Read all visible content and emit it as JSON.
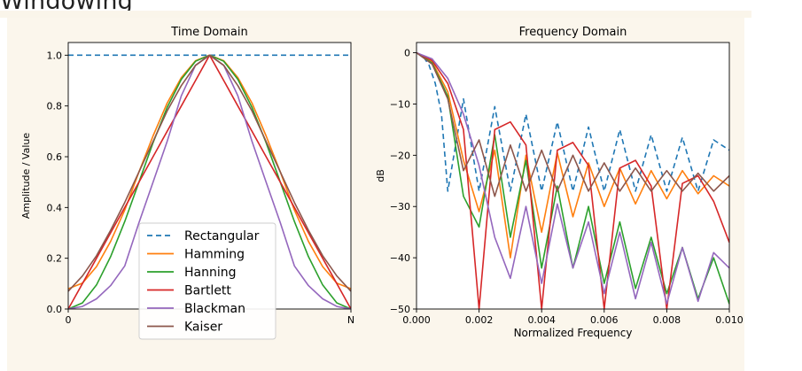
{
  "page": {
    "title": "Windowing"
  },
  "chart_data": [
    {
      "type": "line",
      "title": "Time Domain",
      "xlabel": "",
      "ylabel": "Amplitude / Value",
      "xticks": [
        "0",
        "N"
      ],
      "yticks": [
        "0.0",
        "0.2",
        "0.4",
        "0.6",
        "0.8",
        "1.0"
      ],
      "xlim": [
        0,
        1
      ],
      "ylim": [
        0,
        1.05
      ],
      "grid": false,
      "legend_loc": "lower center",
      "x": [
        0,
        0.05,
        0.1,
        0.15,
        0.2,
        0.25,
        0.3,
        0.35,
        0.4,
        0.45,
        0.5,
        0.55,
        0.6,
        0.65,
        0.7,
        0.75,
        0.8,
        0.85,
        0.9,
        0.95,
        1
      ],
      "series": [
        {
          "name": "Rectangular",
          "color": "#1f77b4",
          "dashed": true,
          "values": [
            1,
            1,
            1,
            1,
            1,
            1,
            1,
            1,
            1,
            1,
            1,
            1,
            1,
            1,
            1,
            1,
            1,
            1,
            1,
            1,
            1
          ]
        },
        {
          "name": "Hamming",
          "color": "#ff7f0e",
          "dashed": false,
          "values": [
            0.08,
            0.102,
            0.167,
            0.266,
            0.39,
            0.54,
            0.682,
            0.811,
            0.912,
            0.978,
            1,
            0.978,
            0.912,
            0.811,
            0.682,
            0.54,
            0.39,
            0.266,
            0.167,
            0.102,
            0.08
          ]
        },
        {
          "name": "Hanning",
          "color": "#2ca02c",
          "dashed": false,
          "values": [
            0,
            0.024,
            0.095,
            0.206,
            0.345,
            0.5,
            0.655,
            0.794,
            0.905,
            0.976,
            1,
            0.976,
            0.905,
            0.794,
            0.655,
            0.5,
            0.345,
            0.206,
            0.095,
            0.024,
            0
          ]
        },
        {
          "name": "Bartlett",
          "color": "#d62728",
          "dashed": false,
          "values": [
            0,
            0.1,
            0.2,
            0.3,
            0.4,
            0.5,
            0.6,
            0.7,
            0.8,
            0.9,
            1,
            0.9,
            0.8,
            0.7,
            0.6,
            0.5,
            0.4,
            0.3,
            0.2,
            0.1,
            0
          ]
        },
        {
          "name": "Blackman",
          "color": "#9467bd",
          "dashed": false,
          "values": [
            0,
            0.01,
            0.04,
            0.092,
            0.17,
            0.34,
            0.5,
            0.66,
            0.84,
            0.96,
            1,
            0.96,
            0.84,
            0.66,
            0.5,
            0.34,
            0.17,
            0.092,
            0.04,
            0.01,
            0
          ]
        },
        {
          "name": "Kaiser",
          "color": "#8c564b",
          "dashed": false,
          "values": [
            0.07,
            0.13,
            0.21,
            0.31,
            0.42,
            0.54,
            0.66,
            0.78,
            0.88,
            0.96,
            1,
            0.96,
            0.88,
            0.78,
            0.66,
            0.54,
            0.42,
            0.31,
            0.21,
            0.13,
            0.07
          ]
        }
      ]
    },
    {
      "type": "line",
      "title": "Frequency Domain",
      "xlabel": "Normalized Frequency",
      "ylabel": "dB",
      "xticks": [
        "0.000",
        "0.002",
        "0.004",
        "0.006",
        "0.008",
        "0.010"
      ],
      "yticks": [
        "−50",
        "−40",
        "−30",
        "−20",
        "−10",
        "0"
      ],
      "xlim": [
        0,
        0.01
      ],
      "ylim": [
        -50,
        2
      ],
      "grid": false,
      "series": [
        {
          "name": "Rectangular",
          "color": "#1f77b4",
          "dashed": true,
          "x": [
            0,
            0.0002,
            0.0004,
            0.0006,
            0.0008,
            0.001,
            0.0015,
            0.002,
            0.0025,
            0.003,
            0.0035,
            0.004,
            0.0045,
            0.005,
            0.0055,
            0.006,
            0.0065,
            0.007,
            0.0075,
            0.008,
            0.0085,
            0.009,
            0.0095,
            0.01
          ],
          "values": [
            0,
            -0.6,
            -2.4,
            -6,
            -12,
            -27,
            -9,
            -27,
            -10.5,
            -27,
            -12,
            -27,
            -13.5,
            -27,
            -14.5,
            -27,
            -15,
            -27,
            -16,
            -27,
            -16.5,
            -27,
            -17,
            -19
          ]
        },
        {
          "name": "Hamming",
          "color": "#ff7f0e",
          "dashed": false,
          "x": [
            0,
            0.0005,
            0.001,
            0.0015,
            0.002,
            0.0025,
            0.003,
            0.0035,
            0.004,
            0.0045,
            0.005,
            0.0055,
            0.006,
            0.0065,
            0.007,
            0.0075,
            0.008,
            0.0085,
            0.009,
            0.0095,
            0.01
          ],
          "values": [
            0,
            -1.8,
            -7.6,
            -21,
            -31,
            -19,
            -40,
            -20,
            -35,
            -19.5,
            -32,
            -21.5,
            -30,
            -22.5,
            -29.5,
            -23,
            -28.5,
            -23,
            -27.5,
            -24,
            -26
          ]
        },
        {
          "name": "Hanning",
          "color": "#2ca02c",
          "dashed": false,
          "x": [
            0,
            0.0005,
            0.001,
            0.0015,
            0.002,
            0.0025,
            0.003,
            0.0035,
            0.004,
            0.0045,
            0.005,
            0.0055,
            0.006,
            0.0065,
            0.007,
            0.0075,
            0.008,
            0.0085,
            0.009,
            0.0095,
            0.01
          ],
          "values": [
            0,
            -2,
            -8.5,
            -28,
            -34,
            -16,
            -36,
            -21,
            -42,
            -26,
            -42,
            -30,
            -45,
            -33,
            -46,
            -36,
            -47,
            -38,
            -48,
            -40,
            -49
          ]
        },
        {
          "name": "Bartlett",
          "color": "#d62728",
          "dashed": false,
          "x": [
            0,
            0.0005,
            0.001,
            0.0015,
            0.002,
            0.0025,
            0.003,
            0.0035,
            0.004,
            0.0045,
            0.005,
            0.0055,
            0.006,
            0.0065,
            0.007,
            0.0075,
            0.008,
            0.0085,
            0.009,
            0.0095,
            0.01
          ],
          "values": [
            0,
            -1.5,
            -6,
            -15,
            -50,
            -15,
            -13.5,
            -18,
            -50,
            -19,
            -17.5,
            -22,
            -50,
            -22.5,
            -21,
            -26,
            -50,
            -25.5,
            -24,
            -29,
            -37
          ]
        },
        {
          "name": "Blackman",
          "color": "#9467bd",
          "dashed": false,
          "x": [
            0,
            0.0005,
            0.001,
            0.0015,
            0.002,
            0.0025,
            0.003,
            0.0035,
            0.004,
            0.0045,
            0.005,
            0.0055,
            0.006,
            0.0065,
            0.007,
            0.0075,
            0.008,
            0.0085,
            0.009,
            0.0095,
            0.01
          ],
          "values": [
            0,
            -1.2,
            -5,
            -12,
            -22,
            -36,
            -44,
            -30,
            -45,
            -29.5,
            -42,
            -33,
            -47,
            -35,
            -48,
            -37,
            -49,
            -38,
            -48.5,
            -39,
            -42
          ]
        },
        {
          "name": "Kaiser",
          "color": "#8c564b",
          "dashed": false,
          "x": [
            0,
            0.0005,
            0.001,
            0.0015,
            0.002,
            0.0025,
            0.003,
            0.0035,
            0.004,
            0.0045,
            0.005,
            0.0055,
            0.006,
            0.0065,
            0.007,
            0.0075,
            0.008,
            0.0085,
            0.009,
            0.0095,
            0.01
          ],
          "values": [
            0,
            -2.2,
            -9,
            -23,
            -17,
            -28,
            -18,
            -27,
            -19,
            -27,
            -20,
            -27,
            -21.5,
            -27,
            -22.5,
            -27,
            -23,
            -27,
            -23.5,
            -27,
            -24
          ]
        }
      ]
    }
  ]
}
